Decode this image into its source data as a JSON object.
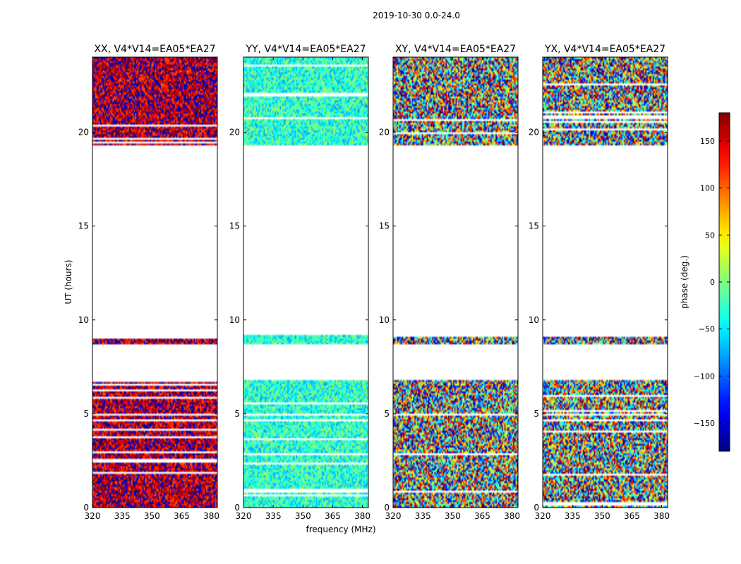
{
  "figure": {
    "suptitle": "2019-10-30 0.0-24.0",
    "xlabel": "frequency (MHz)",
    "ylabel": "UT (hours)"
  },
  "colorbar": {
    "label": "phase (deg.)",
    "range": [
      -180,
      180
    ],
    "ticks": [
      {
        "value": 150,
        "label": "150"
      },
      {
        "value": 100,
        "label": "100"
      },
      {
        "value": 50,
        "label": "50"
      },
      {
        "value": 0,
        "label": "0"
      },
      {
        "value": -50,
        "label": "−50"
      },
      {
        "value": -100,
        "label": "−100"
      },
      {
        "value": -150,
        "label": "−150"
      }
    ],
    "colormap": "jet"
  },
  "chart_data": {
    "type": "heatmap",
    "title": "2019-10-30 0.0-24.0",
    "xlabel": "frequency (MHz)",
    "ylabel": "UT (hours)",
    "xlim": [
      320,
      383
    ],
    "ylim": [
      0,
      24
    ],
    "x_ticks": [
      {
        "value": 320,
        "label": "320"
      },
      {
        "value": 335,
        "label": "335"
      },
      {
        "value": 350,
        "label": "350"
      },
      {
        "value": 365,
        "label": "365"
      },
      {
        "value": 380,
        "label": "380"
      }
    ],
    "y_ticks": [
      {
        "value": 0,
        "label": "0"
      },
      {
        "value": 5,
        "label": "5"
      },
      {
        "value": 10,
        "label": "10"
      },
      {
        "value": 15,
        "label": "15"
      },
      {
        "value": 20,
        "label": "20"
      }
    ],
    "data_ut_ranges": [
      [
        0,
        4.9
      ],
      [
        5.0,
        6.8
      ],
      [
        8.75,
        9.2
      ],
      [
        19.35,
        24
      ]
    ],
    "panels": [
      {
        "title": "XX, V4*V14=EA05*EA27",
        "mean_phase": 160,
        "spread": 60
      },
      {
        "title": "YY, V4*V14=EA05*EA27",
        "mean_phase": -30,
        "spread": 50
      },
      {
        "title": "XY, V4*V14=EA05*EA27",
        "mean_phase": 0,
        "spread": 180
      },
      {
        "title": "YX, V4*V14=EA05*EA27",
        "mean_phase": 0,
        "spread": 180
      }
    ]
  }
}
